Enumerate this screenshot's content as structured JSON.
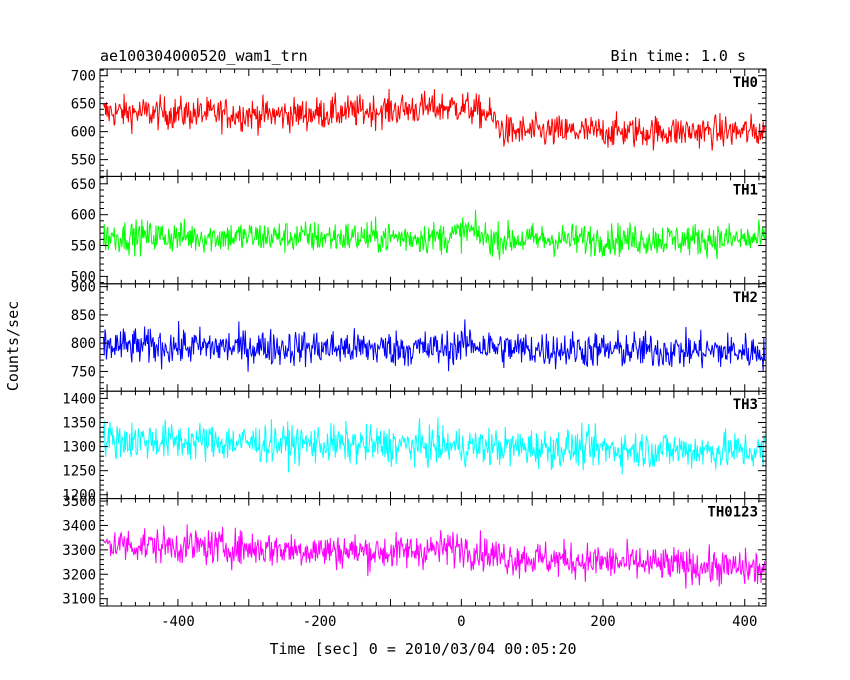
{
  "chart_data": {
    "type": "line",
    "title_left": "ae100304000520_wam1_trn",
    "title_right": "Bin time: 1.0 s",
    "xlabel": "Time [sec] 0 = 2010/03/04 00:05:20",
    "ylabel": "Counts/sec",
    "xlim": [
      -510,
      430
    ],
    "xticks": [
      -400,
      -200,
      0,
      200,
      400
    ],
    "bin_time": 1.0,
    "panels": [
      {
        "name": "TH0",
        "color": "#ff0000",
        "ylim": [
          520,
          712
        ],
        "yticks": [
          550,
          600,
          650,
          700
        ],
        "profile": [
          [
            -510,
            635
          ],
          [
            -250,
            630
          ],
          [
            0,
            645
          ],
          [
            40,
            630
          ],
          [
            60,
            600
          ],
          [
            430,
            600
          ]
        ],
        "noise_amplitude": 38
      },
      {
        "name": "TH1",
        "color": "#00ff00",
        "ylim": [
          488,
          662
        ],
        "yticks": [
          500,
          550,
          600,
          650
        ],
        "profile": [
          [
            -510,
            565
          ],
          [
            -20,
            563
          ],
          [
            10,
            575
          ],
          [
            40,
            560
          ],
          [
            430,
            560
          ]
        ],
        "noise_amplitude": 34
      },
      {
        "name": "TH2",
        "color": "#0000ff",
        "ylim": [
          715,
          905
        ],
        "yticks": [
          750,
          800,
          850,
          900
        ],
        "profile": [
          [
            -510,
            795
          ],
          [
            -20,
            790
          ],
          [
            10,
            800
          ],
          [
            60,
            790
          ],
          [
            430,
            785
          ]
        ],
        "noise_amplitude": 42
      },
      {
        "name": "TH3",
        "color": "#00ffff",
        "ylim": [
          1192,
          1415
        ],
        "yticks": [
          1200,
          1250,
          1300,
          1350,
          1400
        ],
        "profile": [
          [
            -510,
            1315
          ],
          [
            -200,
            1305
          ],
          [
            430,
            1290
          ]
        ],
        "noise_amplitude": 52
      },
      {
        "name": "TH0123",
        "color": "#ff00ff",
        "ylim": [
          3070,
          3510
        ],
        "yticks": [
          3100,
          3200,
          3300,
          3400,
          3500
        ],
        "profile": [
          [
            -510,
            3325
          ],
          [
            -100,
            3290
          ],
          [
            0,
            3310
          ],
          [
            60,
            3270
          ],
          [
            430,
            3220
          ]
        ],
        "noise_amplitude": 95
      }
    ]
  }
}
